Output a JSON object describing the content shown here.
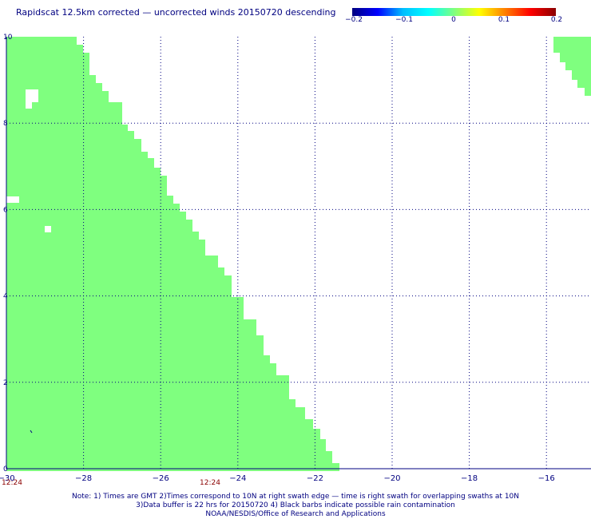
{
  "title": "Rapidscat 12.5km corrected — uncorrected winds 20150720 descending",
  "colorbar": {
    "ticks": [
      "−0.2",
      "−0.1",
      "0",
      "0.1",
      "0.2"
    ],
    "colors": [
      "#000080",
      "#0000ff",
      "#00bfff",
      "#00ffff",
      "#7fff7f",
      "#ffff00",
      "#ff8000",
      "#ff0000",
      "#8b0000"
    ]
  },
  "map": {
    "x_ticks": [
      "−30",
      "−28",
      "−26",
      "−24",
      "−22",
      "−20",
      "−18",
      "−16"
    ],
    "y_ticks": [
      "0",
      "2",
      "4",
      "6",
      "8",
      "10"
    ],
    "lon_range": [
      -30,
      -15
    ],
    "lat_range": [
      0,
      10
    ],
    "swath_color": "#7fff7f",
    "grid_color": "#000080"
  },
  "time_labels": [
    "12:24",
    "12:24"
  ],
  "notes": [
    "Note: 1) Times are GMT 2)Times correspond to 10N at right swath edge — time is right swath for overlapping swaths at 10N",
    "3)Data buffer is 22 hrs for 20150720 4) Black barbs indicate possible rain contamination",
    "NOAA/NESDIS/Office of Research and Applications"
  ]
}
